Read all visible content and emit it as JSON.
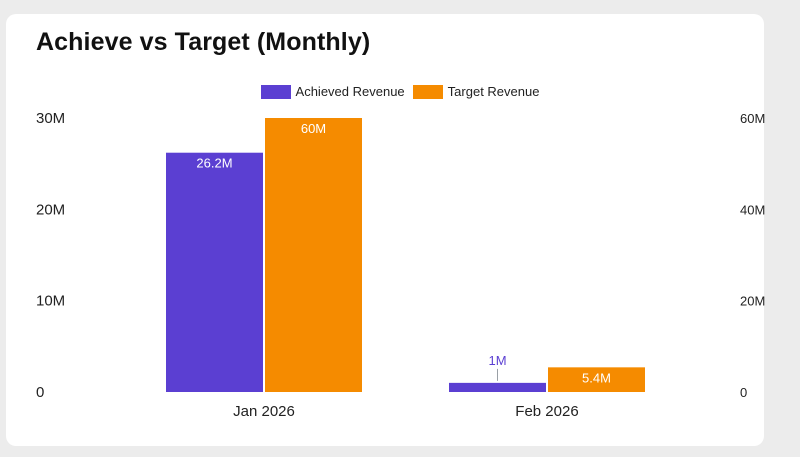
{
  "chart_data": {
    "type": "bar",
    "title": "Achieve vs Target (Monthly)",
    "categories": [
      "Jan 2026",
      "Feb 2026"
    ],
    "series": [
      {
        "name": "Achieved Revenue",
        "values": [
          26.2,
          1.0
        ],
        "labels": [
          "26.2M",
          "1M"
        ],
        "color": "#5b3fd2",
        "axis": "left"
      },
      {
        "name": "Target Revenue",
        "values": [
          60,
          5.4
        ],
        "labels": [
          "60M",
          "5.4M"
        ],
        "color": "#f58b00",
        "axis": "right"
      }
    ],
    "left_axis": {
      "ylim": [
        0,
        30
      ],
      "ticks": [
        0,
        10,
        20,
        30
      ],
      "tick_labels": [
        "0",
        "10M",
        "20M",
        "30M"
      ]
    },
    "right_axis": {
      "ylim": [
        0,
        60
      ],
      "ticks": [
        0,
        20,
        40,
        60
      ],
      "tick_labels": [
        "0",
        "20M",
        "40M",
        "60M"
      ]
    },
    "xlabel": "",
    "ylabel": "",
    "grid": false,
    "legend_position": "top-center"
  }
}
